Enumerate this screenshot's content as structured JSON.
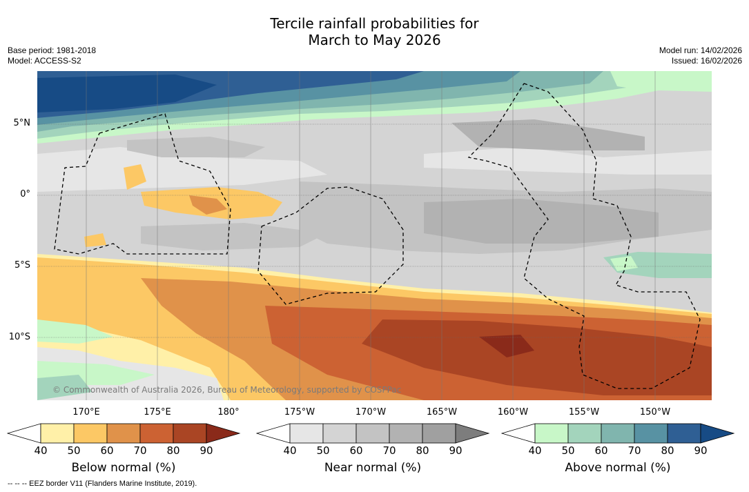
{
  "title_line1": "Tercile rainfall probabilities for",
  "title_line2": "March to May 2026",
  "base_period": "Base period: 1981-2018",
  "model": "Model: ACCESS-S2",
  "model_run": "Model run: 14/02/2026",
  "issued": "Issued: 16/02/2026",
  "copyright": "© Commonwealth of Australia 2026, Bureau of Meteorology, supported by COSPPac",
  "lat_labels": [
    "5°N",
    "0°",
    "5°S",
    "10°S"
  ],
  "lon_labels": [
    "170°E",
    "175°E",
    "180°",
    "175°W",
    "170°W",
    "165°W",
    "160°W",
    "155°W",
    "150°W"
  ],
  "colorbars": [
    {
      "title": "Below normal (%)",
      "ticks": [
        "40",
        "50",
        "60",
        "70",
        "80",
        "90"
      ],
      "colors": [
        "#fff0a8",
        "#fcc865",
        "#e0924a",
        "#cc6233",
        "#aa4524",
        "#8a2a1a"
      ]
    },
    {
      "title": "Near normal (%)",
      "ticks": [
        "40",
        "50",
        "60",
        "70",
        "80",
        "90"
      ],
      "colors": [
        "#e6e6e6",
        "#d4d4d4",
        "#c3c3c3",
        "#b2b2b2",
        "#a0a0a0",
        "#7d7d7d"
      ]
    },
    {
      "title": "Above normal (%)",
      "ticks": [
        "40",
        "50",
        "60",
        "70",
        "80",
        "90"
      ],
      "colors": [
        "#c8f7c8",
        "#a3d4bc",
        "#80b5ae",
        "#5892a3",
        "#2f5f94",
        "#174b85"
      ]
    }
  ],
  "footer": "--  --  -- EEZ border V11 (Flanders Marine Institute, 2019)."
}
